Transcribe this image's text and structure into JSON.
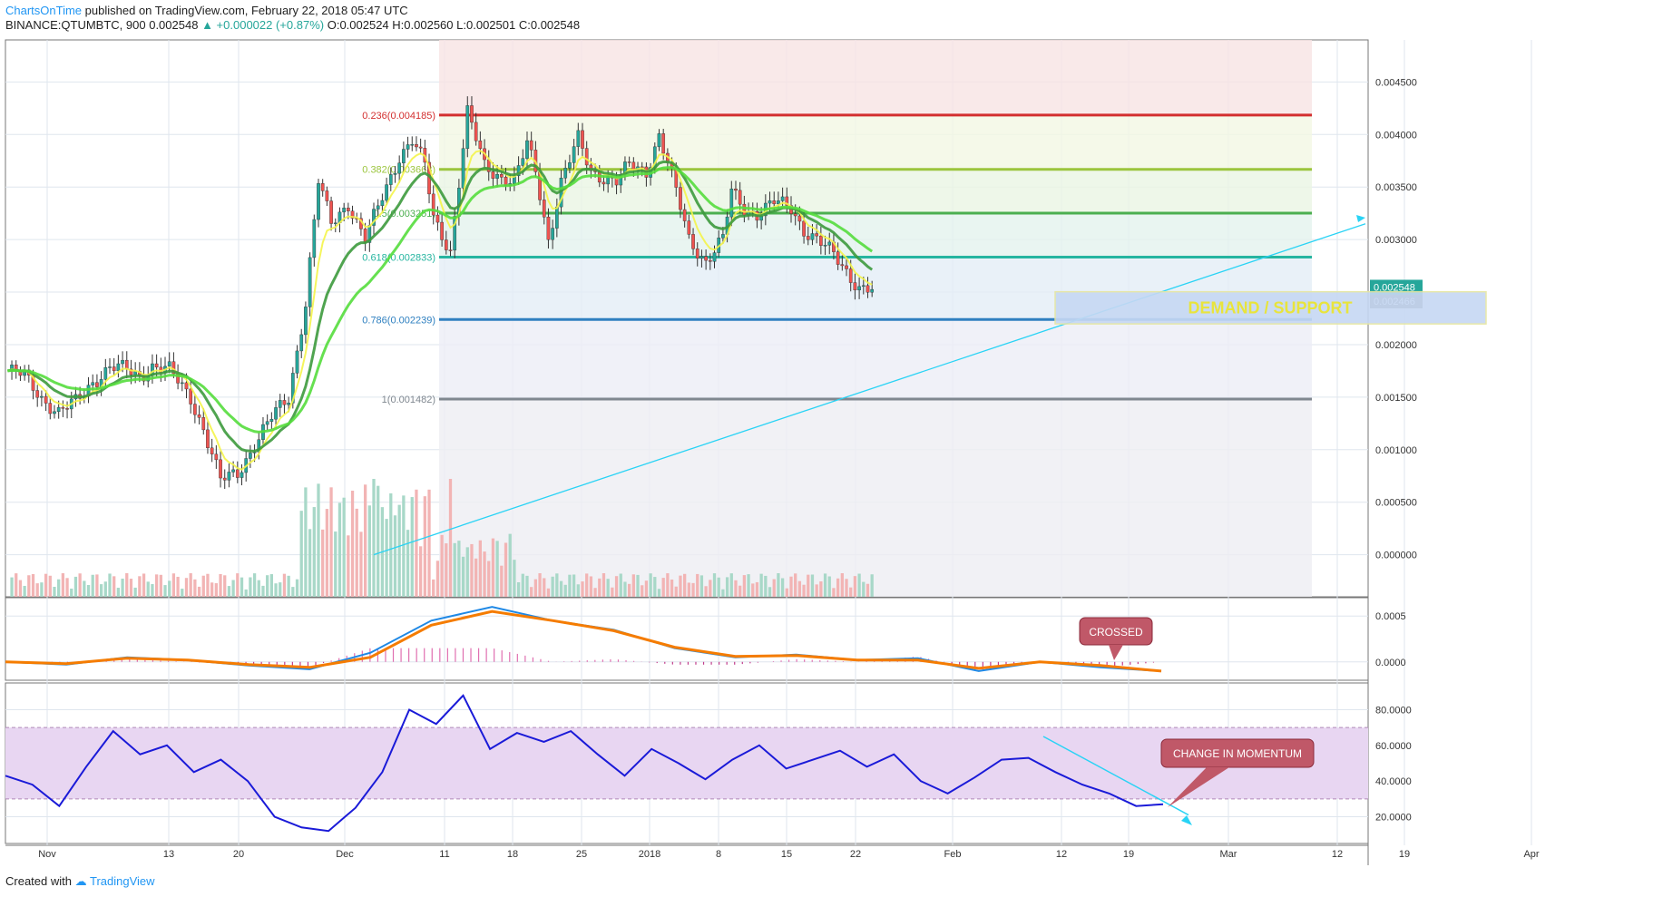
{
  "header": {
    "author": "ChartsOnTime",
    "published": "published on TradingView.com, February 22, 2018 05:47 UTC",
    "symbol_line": "BINANCE:QTUMBTC, 900",
    "last": "0.002548",
    "change": "▲ +0.000022 (+0.87%)",
    "ohlc_o": "O:0.002524",
    "ohlc_h": "H:0.002560",
    "ohlc_l": "L:0.002501",
    "ohlc_c": "C:0.002548"
  },
  "footer": {
    "created_with": "Created with",
    "brand": "TradingView"
  },
  "colors": {
    "up": "#26a69a",
    "down": "#ef5350",
    "ema_fast": "#f4f44a",
    "ema_mid": "#3d9a3d",
    "ema_slow": "#55dd3d",
    "trend": "#29d3f5",
    "macd": "#1e88e5",
    "signal": "#f57c00",
    "rsi": "#1a1ad8",
    "rsi_band": "#e8d6f2"
  },
  "chart_data": [
    {
      "type": "candlestick",
      "title": "BINANCE:QTUMBTC, 900",
      "x_ticks": [
        "Nov",
        "13",
        "20",
        "Dec",
        "11",
        "18",
        "25",
        "2018",
        "8",
        "15",
        "22",
        "Feb",
        "12",
        "19",
        "Mar",
        "12",
        "19",
        "Apr"
      ],
      "ylim": [
        -0.0004,
        0.0049
      ],
      "y_ticks": [
        "0.004500",
        "0.004000",
        "0.003500",
        "0.003000",
        "0.002500",
        "0.002000",
        "0.001500",
        "0.001000",
        "0.000500",
        "0.000000"
      ],
      "price_labels": [
        "0.002548",
        "09:12:24",
        "0.002466"
      ],
      "fib_levels": [
        {
          "label": "0.236(0.004185)",
          "value": 0.004185,
          "color": "#d32f2f"
        },
        {
          "label": "0.382(0.003668)",
          "value": 0.003668,
          "color": "#9bc53d"
        },
        {
          "label": "0.5(0.003251)",
          "value": 0.003251,
          "color": "#4caf50"
        },
        {
          "label": "0.618(0.002833)",
          "value": 0.002833,
          "color": "#26b5a0"
        },
        {
          "label": "0.786(0.002239)",
          "value": 0.002239,
          "color": "#2f80c0"
        },
        {
          "label": "1(0.001482)",
          "value": 0.001482,
          "color": "#808890"
        }
      ],
      "annotations": [
        {
          "label": "DEMAND / SUPPORT",
          "y_range": [
            0.00224,
            0.00246
          ]
        }
      ],
      "price_anchors": {
        "x": [
          0,
          4,
          8,
          12,
          16,
          20,
          24,
          28,
          31,
          34,
          38,
          40,
          43,
          46,
          50,
          54,
          58,
          62,
          66,
          70,
          73,
          76,
          80,
          84,
          88,
          92,
          95,
          98,
          100,
          104,
          108,
          112,
          116,
          119,
          122,
          124,
          127,
          130,
          134,
          137,
          140,
          143,
          146,
          150,
          153,
          156,
          160,
          164,
          168,
          170,
          173,
          176,
          180,
          184,
          187,
          190,
          194,
          197,
          200,
          203
        ],
        "y": [
          0.00175,
          0.0017,
          0.0015,
          0.00135,
          0.00145,
          0.00165,
          0.00178,
          0.00176,
          0.0017,
          0.0018,
          0.00175,
          0.00165,
          0.0015,
          0.0012,
          0.0007,
          0.00078,
          0.00105,
          0.0013,
          0.0015,
          0.0024,
          0.00355,
          0.00315,
          0.00335,
          0.003,
          0.0034,
          0.0038,
          0.00395,
          0.0037,
          0.0032,
          0.0029,
          0.0042,
          0.0037,
          0.0036,
          0.00355,
          0.0039,
          0.00365,
          0.003,
          0.00355,
          0.00395,
          0.00365,
          0.0036,
          0.00355,
          0.0037,
          0.00365,
          0.004,
          0.0036,
          0.003,
          0.0028,
          0.003,
          0.00345,
          0.0033,
          0.00325,
          0.00335,
          0.0033,
          0.0031,
          0.003,
          0.00285,
          0.0027,
          0.00255,
          0.00252
        ]
      }
    },
    {
      "type": "line",
      "series": [
        {
          "values": [
            0.0,
            -3e-05,
            5e-05,
            2e-05,
            -4e-05,
            -8e-05,
            0.0001,
            0.00045,
            0.0006,
            0.00045,
            0.00035,
            0.00015,
            5e-05,
            8e-05,
            2e-05,
            4e-05,
            -0.0001,
            0.0,
            -6e-05,
            -0.0001
          ]
        },
        {
          "values": [
            0.0,
            -2e-05,
            4e-05,
            2e-05,
            -3e-05,
            -6e-05,
            5e-05,
            0.0004,
            0.00055,
            0.00045,
            0.00034,
            0.00016,
            6e-05,
            7e-05,
            2e-05,
            2e-05,
            -7e-05,
            0.0,
            -4e-05,
            -0.0001
          ]
        }
      ],
      "y_ticks": [
        "0.0005",
        "0.0000"
      ],
      "ylim": [
        -0.0002,
        0.0007
      ],
      "annotations": [
        {
          "label": "CROSSED"
        }
      ]
    },
    {
      "type": "line",
      "series": [
        {
          "values": [
            43,
            38,
            26,
            48,
            68,
            55,
            60,
            45,
            52,
            40,
            20,
            14,
            12,
            25,
            45,
            80,
            72,
            88,
            58,
            67,
            62,
            68,
            55,
            43,
            58,
            50,
            41,
            52,
            60,
            47,
            52,
            57,
            48,
            55,
            40,
            33,
            42,
            52,
            53,
            45,
            38,
            33,
            26,
            27
          ]
        }
      ],
      "y_ticks": [
        "80.0000",
        "60.0000",
        "40.0000",
        "20.0000"
      ],
      "ylim": [
        5,
        95
      ],
      "bands": [
        30,
        70
      ],
      "annotations": [
        {
          "label": "CHANGE IN MOMENTUM"
        }
      ]
    }
  ]
}
